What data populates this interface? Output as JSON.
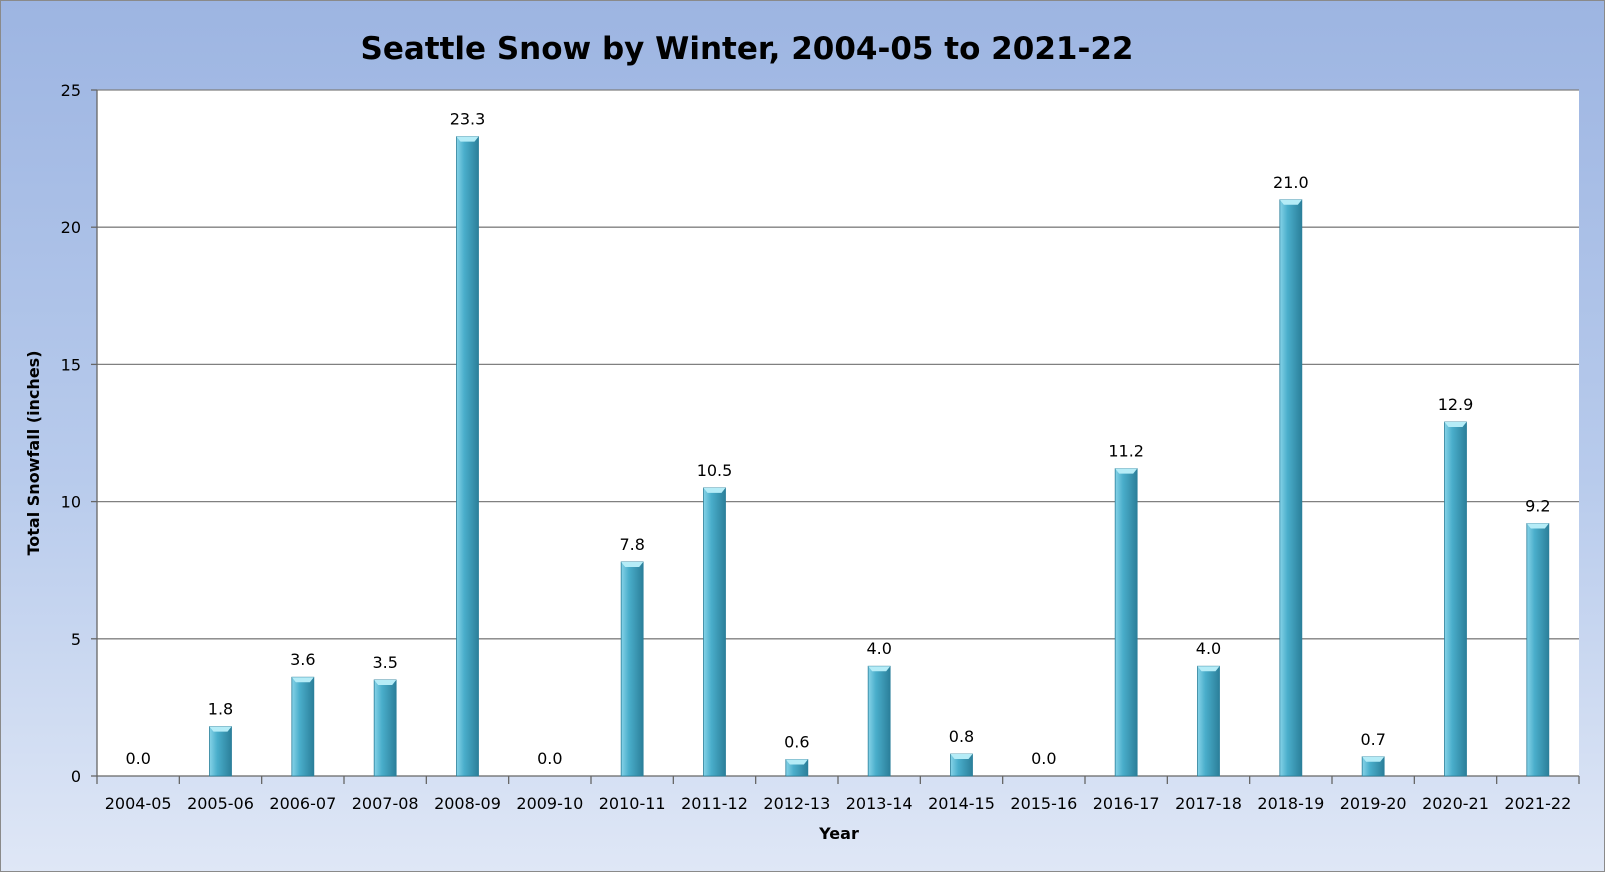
{
  "chart_data": {
    "type": "bar",
    "title": "Seattle Snow by Winter, 2004-05 to 2021-22",
    "xlabel": "Year",
    "ylabel": "Total Snowfall (inches)",
    "ylim": [
      0,
      25
    ],
    "yticks": [
      0,
      5,
      10,
      15,
      20,
      25
    ],
    "grid": true,
    "legend": "none",
    "categories": [
      "2004-05",
      "2005-06",
      "2006-07",
      "2007-08",
      "2008-09",
      "2009-10",
      "2010-11",
      "2011-12",
      "2012-13",
      "2013-14",
      "2014-15",
      "2015-16",
      "2016-17",
      "2017-18",
      "2018-19",
      "2019-20",
      "2020-21",
      "2021-22"
    ],
    "values": [
      0.0,
      1.8,
      3.6,
      3.5,
      23.3,
      0.0,
      7.8,
      10.5,
      0.6,
      4.0,
      0.8,
      0.0,
      11.2,
      4.0,
      21.0,
      0.7,
      12.9,
      9.2
    ],
    "data_labels": [
      "0.0",
      "1.8",
      "3.6",
      "3.5",
      "23.3",
      "0.0",
      "7.8",
      "10.5",
      "0.6",
      "4.0",
      "0.8",
      "0.0",
      "11.2",
      "4.0",
      "21.0",
      "0.7",
      "12.9",
      "9.2"
    ],
    "colors": {
      "bar": "#4aaecb",
      "bar_light": "#86d3e8",
      "bar_dark": "#2b7f9a",
      "bar_cap": "#b5ecf7",
      "plot_bg": "#ffffff",
      "grid": "#808080"
    }
  }
}
